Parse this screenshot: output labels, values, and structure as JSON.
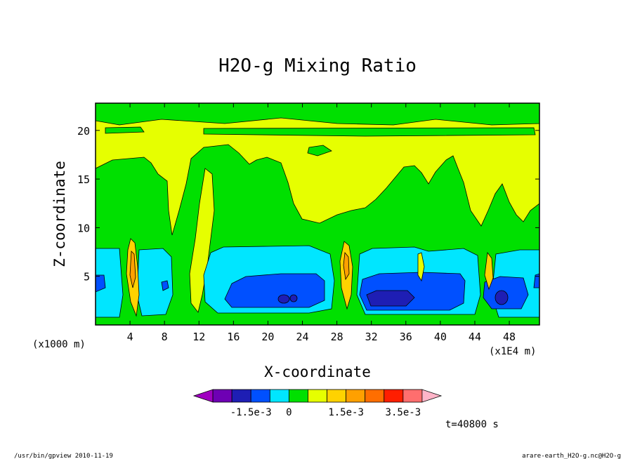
{
  "chart_data": {
    "type": "heatmap",
    "title": "H2O-g Mixing Ratio",
    "xlabel": "X-coordinate",
    "ylabel": "Z-coordinate",
    "x_unit_left": "(x1000 m)",
    "x_unit_right": "(x1E4 m)",
    "xlim": [
      0,
      51.5
    ],
    "ylim": [
      0,
      22.8
    ],
    "x_ticks": [
      "4",
      "8",
      "12",
      "16",
      "20",
      "24",
      "28",
      "32",
      "36",
      "40",
      "44",
      "48"
    ],
    "y_ticks": [
      "5",
      "10",
      "15",
      "20"
    ],
    "colorbar": {
      "colors": [
        "#a000c0",
        "#6e00b4",
        "#1e1eb4",
        "#0050ff",
        "#00e6ff",
        "#00e000",
        "#e6ff00",
        "#ffd200",
        "#ffa000",
        "#ff6e00",
        "#ff1e00",
        "#ff6e6e",
        "#ffb4c8"
      ],
      "labels": [
        "-1.5e-3",
        "0",
        "1.5e-3",
        "3.5e-3"
      ],
      "grid": "off"
    },
    "time": "t=40800 s"
  },
  "footer": {
    "left": "/usr/bin/gpview  2010-11-19",
    "right": "arare-earth_H2O-g.nc@H2O-g"
  }
}
